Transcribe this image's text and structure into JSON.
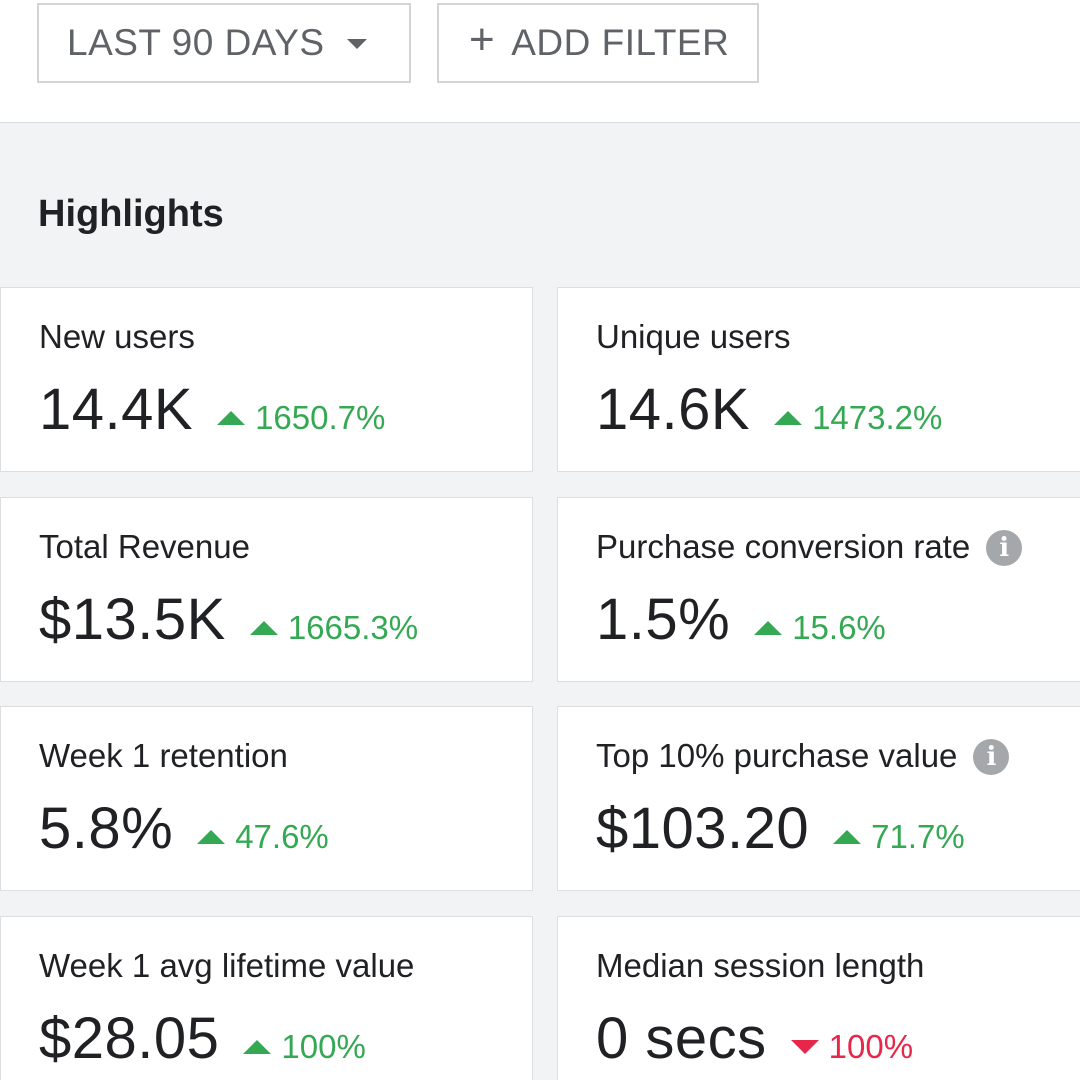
{
  "toolbar": {
    "date_range_label": "LAST 90 DAYS",
    "add_filter_label": "ADD FILTER",
    "add_filter_icon": "+"
  },
  "highlights": {
    "title": "Highlights",
    "cards": [
      {
        "label": "New users",
        "value": "14.4K",
        "delta": "1650.7%",
        "direction": "up",
        "info": false
      },
      {
        "label": "Unique users",
        "value": "14.6K",
        "delta": "1473.2%",
        "direction": "up",
        "info": false
      },
      {
        "label": "Total Revenue",
        "value": "$13.5K",
        "delta": "1665.3%",
        "direction": "up",
        "info": false
      },
      {
        "label": "Purchase conversion rate",
        "value": "1.5%",
        "delta": "15.6%",
        "direction": "up",
        "info": true
      },
      {
        "label": "Week 1 retention",
        "value": "5.8%",
        "delta": "47.6%",
        "direction": "up",
        "info": false
      },
      {
        "label": "Top 10% purchase value",
        "value": "$103.20",
        "delta": "71.7%",
        "direction": "up",
        "info": true
      },
      {
        "label": "Week 1 avg lifetime value",
        "value": "$28.05",
        "delta": "100%",
        "direction": "up",
        "info": false
      },
      {
        "label": "Median session length",
        "value": "0 secs",
        "delta": "100%",
        "direction": "down",
        "info": false
      }
    ]
  },
  "colors": {
    "positive": "#34a853",
    "negative": "#e8264a",
    "background": "#f1f3f4",
    "text": "#202124"
  },
  "icons": {
    "dropdown": "caret-down-icon",
    "add": "plus-icon",
    "info": "info-icon",
    "increase": "triangle-up-icon",
    "decrease": "triangle-down-icon"
  }
}
